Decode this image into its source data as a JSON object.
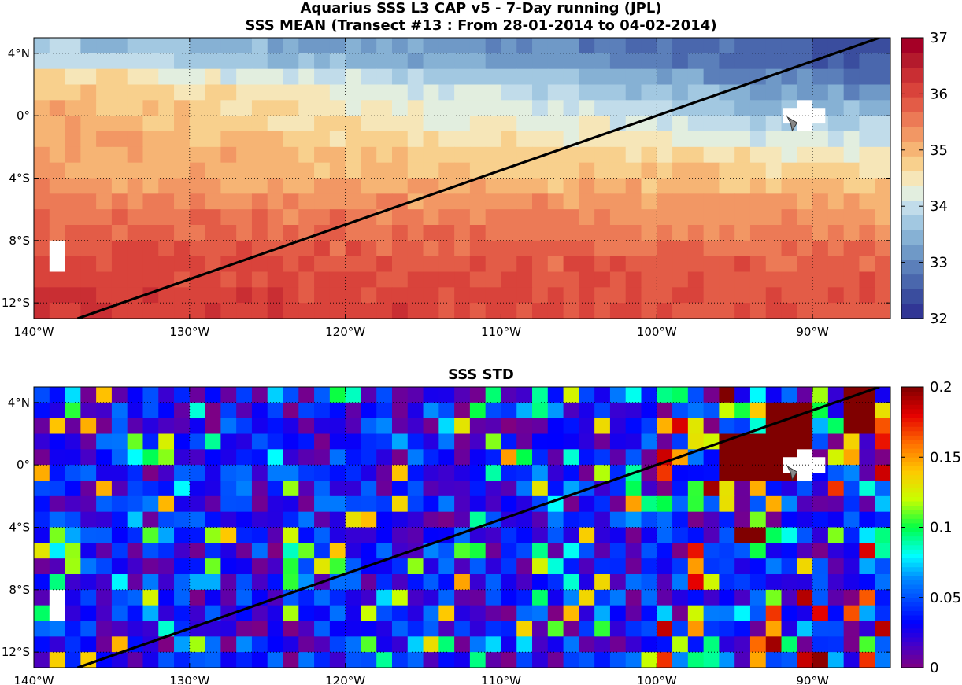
{
  "titles": {
    "line1": "Aquarius SSS L3 CAP v5 - 7-Day running (JPL)",
    "line2": "SSS MEAN (Transect #13 : From 28-01-2014 to 04-02-2014)",
    "std": "SSS STD"
  },
  "chart_data": [
    {
      "type": "heatmap",
      "name": "sss-mean",
      "title": "SSS MEAN (Transect #13 : From 28-01-2014 to 04-02-2014)",
      "xlim": [
        -140,
        -85
      ],
      "ylim": [
        -13,
        5
      ],
      "x_ticks": [
        -140,
        -130,
        -120,
        -110,
        -100,
        -90
      ],
      "x_tick_labels": [
        "140°W",
        "130°W",
        "120°W",
        "110°W",
        "100°W",
        "90°W"
      ],
      "y_ticks": [
        4,
        0,
        -4,
        -8,
        -12
      ],
      "y_tick_labels": [
        "4°N",
        "0°",
        "4°S",
        "8°S",
        "12°S"
      ],
      "colorbar": {
        "min": 32,
        "max": 37,
        "ticks": [
          32,
          33,
          34,
          35,
          36,
          37
        ],
        "tick_labels": [
          "32",
          "33",
          "34",
          "35",
          "36",
          "37"
        ]
      },
      "colors": [
        "#313695",
        "#3a4d9e",
        "#4a67ad",
        "#5b7fba",
        "#6f99c7",
        "#86b1d4",
        "#a2c8e1",
        "#c1dcea",
        "#e2eedf",
        "#f6e6b8",
        "#f8d08d",
        "#f6b474",
        "#f29764",
        "#ec7a56",
        "#e35c47",
        "#d9433b",
        "#c92e33",
        "#b41a2c",
        "#a50026"
      ],
      "grid": true,
      "land_or_missing": [
        {
          "lon": -138.5,
          "lat": -9
        },
        {
          "lon": -90.5,
          "lat": 0
        }
      ],
      "transect": {
        "from": [
          -137.2,
          -13
        ],
        "to": [
          -85.7,
          5
        ]
      },
      "marker": {
        "lon": -91.3,
        "lat": -0.5
      },
      "rows": [
        {
          "lat": 4,
          "start": 33.8,
          "end": 32.4
        },
        {
          "lat": 2,
          "start": 35.0,
          "end": 32.9
        },
        {
          "lat": 0,
          "start": 35.1,
          "end": 33.6
        },
        {
          "lat": -2,
          "start": 35.2,
          "end": 34.2
        },
        {
          "lat": -4,
          "start": 35.2,
          "end": 34.8
        },
        {
          "lat": -6,
          "start": 35.6,
          "end": 35.2
        },
        {
          "lat": -8,
          "start": 35.9,
          "end": 35.5
        },
        {
          "lat": -10,
          "start": 36.1,
          "end": 35.8
        },
        {
          "lat": -12,
          "start": 36.2,
          "end": 35.9
        }
      ]
    },
    {
      "type": "heatmap",
      "name": "sss-std",
      "title": "SSS STD",
      "xlim": [
        -140,
        -85
      ],
      "ylim": [
        -13,
        5
      ],
      "x_ticks": [
        -140,
        -130,
        -120,
        -110,
        -100,
        -90
      ],
      "x_tick_labels": [
        "140°W",
        "130°W",
        "120°W",
        "110°W",
        "100°W",
        "90°W"
      ],
      "y_ticks": [
        4,
        0,
        -4,
        -8,
        -12
      ],
      "y_tick_labels": [
        "4°N",
        "0°",
        "4°S",
        "8°S",
        "12°S"
      ],
      "colorbar": {
        "min": 0,
        "max": 0.2,
        "ticks": [
          0,
          0.05,
          0.1,
          0.15,
          0.2
        ],
        "tick_labels": [
          "0",
          "0.05",
          "0.1",
          "0.15",
          "0.2"
        ]
      },
      "colormap": "jet",
      "grid": true,
      "land_or_missing": [
        {
          "lon": -138.5,
          "lat": -9
        },
        {
          "lon": -90.5,
          "lat": 0
        }
      ],
      "transect": {
        "from": [
          -137.2,
          -13
        ],
        "to": [
          -85.7,
          5
        ]
      },
      "marker": {
        "lon": -91.3,
        "lat": -0.5
      },
      "typical_value": 0.04,
      "high_regions": [
        {
          "lon": [
            -96,
            -91
          ],
          "lat": [
            -0.5,
            1.5
          ],
          "value": 0.2
        },
        {
          "lon": [
            -93,
            -90
          ],
          "lat": [
            1.5,
            3.5
          ],
          "value": 0.2
        },
        {
          "lon": [
            -88,
            -86
          ],
          "lat": [
            2.5,
            4.5
          ],
          "value": 0.2
        },
        {
          "lon": [
            -95,
            -93
          ],
          "lat": [
            -5,
            -4
          ],
          "value": 0.2
        },
        {
          "lon": [
            -96,
            -95
          ],
          "lat": [
            4,
            5
          ],
          "value": 0.2
        }
      ]
    }
  ]
}
